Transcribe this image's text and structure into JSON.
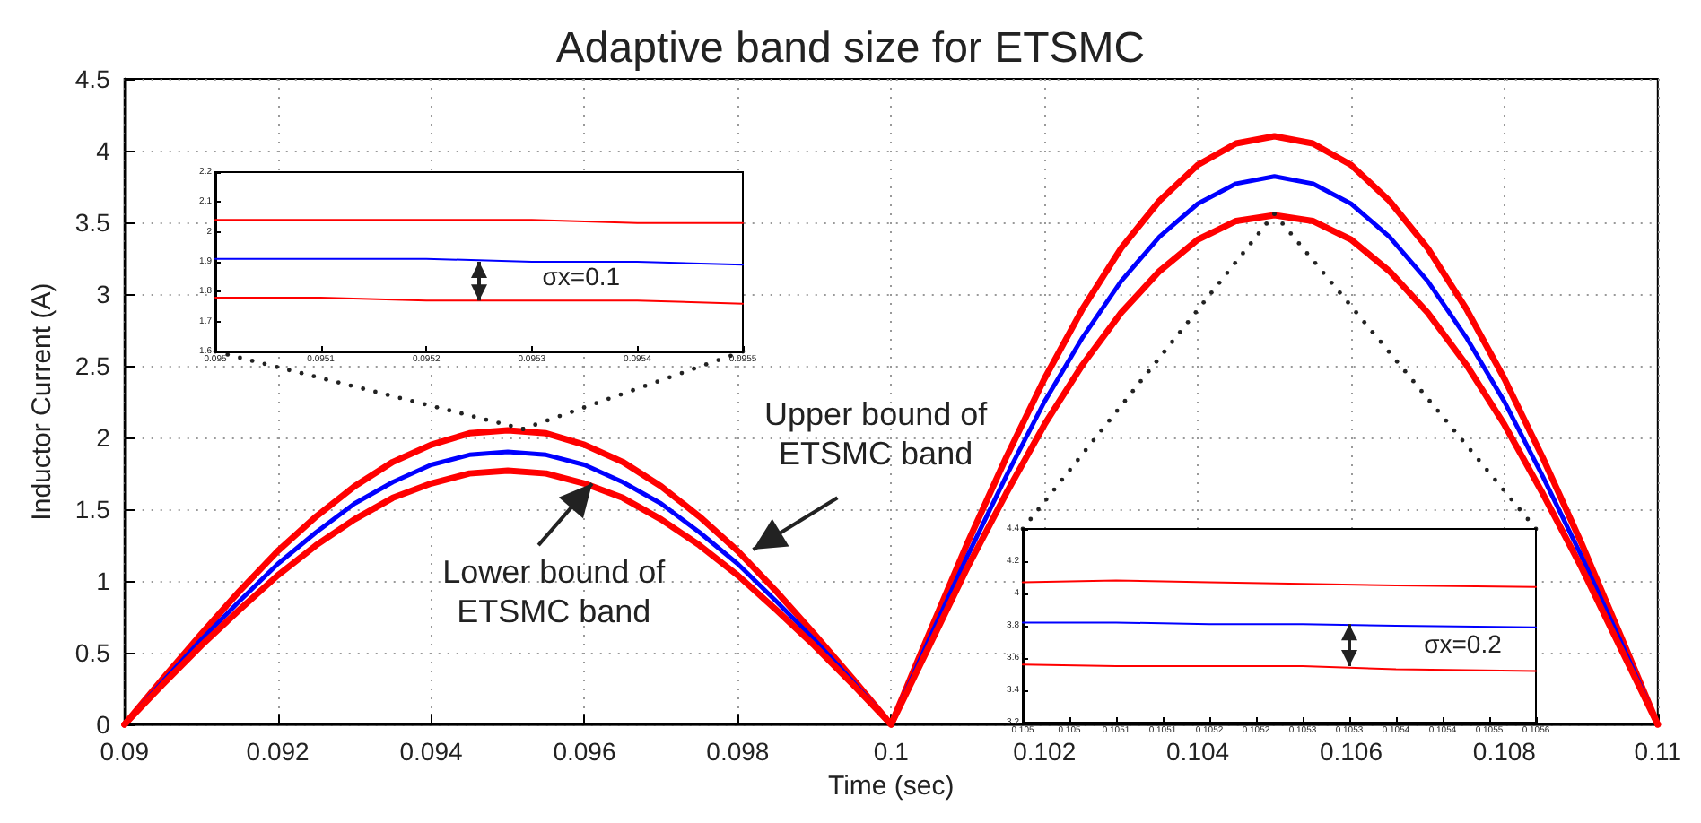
{
  "chart_data": [
    {
      "type": "line",
      "title": "Adaptive band size for ETSMC",
      "xlabel": "Time (sec)",
      "ylabel": "Inductor Current (A)",
      "xlim": [
        0.09,
        0.11
      ],
      "xticks": [
        0.09,
        0.092,
        0.094,
        0.096,
        0.098,
        0.1,
        0.102,
        0.104,
        0.106,
        0.108,
        0.11
      ],
      "ylim": [
        0,
        4.5
      ],
      "yticks": [
        0,
        0.5,
        1,
        1.5,
        2,
        2.5,
        3,
        3.5,
        4,
        4.5
      ],
      "grid": true,
      "x": [
        0.09,
        0.0905,
        0.091,
        0.0915,
        0.092,
        0.0925,
        0.093,
        0.0935,
        0.094,
        0.0945,
        0.095,
        0.0955,
        0.096,
        0.0965,
        0.097,
        0.0975,
        0.098,
        0.0985,
        0.099,
        0.0995,
        0.1,
        0.1005,
        0.101,
        0.1015,
        0.102,
        0.1025,
        0.103,
        0.1035,
        0.104,
        0.1045,
        0.105,
        0.1055,
        0.106,
        0.1065,
        0.107,
        0.1075,
        0.108,
        0.1085,
        0.109,
        0.1095,
        0.11
      ],
      "series": [
        {
          "color": "#ff0000",
          "values": [
            0,
            0.32,
            0.63,
            0.93,
            1.21,
            1.45,
            1.66,
            1.83,
            1.95,
            2.03,
            2.05,
            2.03,
            1.95,
            1.83,
            1.66,
            1.45,
            1.21,
            0.93,
            0.63,
            0.32,
            0,
            0.64,
            1.27,
            1.86,
            2.41,
            2.9,
            3.32,
            3.65,
            3.9,
            4.05,
            4.1,
            4.05,
            3.9,
            3.65,
            3.32,
            2.9,
            2.41,
            1.86,
            1.27,
            0.64,
            0
          ]
        },
        {
          "color": "#0000ff",
          "values": [
            0,
            0.3,
            0.59,
            0.86,
            1.12,
            1.34,
            1.54,
            1.69,
            1.81,
            1.88,
            1.9,
            1.88,
            1.81,
            1.69,
            1.54,
            1.34,
            1.12,
            0.86,
            0.59,
            0.3,
            0,
            0.6,
            1.18,
            1.73,
            2.25,
            2.7,
            3.09,
            3.4,
            3.63,
            3.77,
            3.82,
            3.77,
            3.63,
            3.4,
            3.09,
            2.7,
            2.25,
            1.73,
            1.18,
            0.6,
            0
          ]
        },
        {
          "color": "#ff0000",
          "values": [
            0,
            0.28,
            0.55,
            0.8,
            1.04,
            1.25,
            1.43,
            1.58,
            1.68,
            1.75,
            1.77,
            1.75,
            1.68,
            1.58,
            1.43,
            1.25,
            1.04,
            0.8,
            0.55,
            0.28,
            0,
            0.55,
            1.1,
            1.61,
            2.09,
            2.51,
            2.87,
            3.16,
            3.38,
            3.51,
            3.55,
            3.51,
            3.38,
            3.16,
            2.87,
            2.51,
            2.09,
            1.61,
            1.1,
            0.55,
            0
          ]
        }
      ],
      "annotations": [
        "Upper bound of ETSMC band",
        "Lower bound of ETSMC band"
      ]
    },
    {
      "type": "line",
      "xlim": [
        0.095,
        0.0955
      ],
      "xticks": [
        0.095,
        0.0951,
        0.0952,
        0.0953,
        0.0954,
        0.0955
      ],
      "ylim": [
        1.6,
        2.2
      ],
      "yticks": [
        1.6,
        1.7,
        1.8,
        1.9,
        2,
        2.1,
        2.2
      ],
      "x": [
        0.095,
        0.0951,
        0.0952,
        0.0953,
        0.0954,
        0.0955
      ],
      "series": [
        {
          "color": "#ff0000",
          "values": [
            2.04,
            2.04,
            2.04,
            2.04,
            2.03,
            2.03
          ]
        },
        {
          "color": "#0000ff",
          "values": [
            1.91,
            1.91,
            1.91,
            1.9,
            1.9,
            1.89
          ]
        },
        {
          "color": "#ff0000",
          "values": [
            1.78,
            1.78,
            1.77,
            1.77,
            1.77,
            1.76
          ]
        }
      ],
      "annotations": [
        "σx=0.1"
      ]
    },
    {
      "type": "line",
      "xlim": [
        0.105,
        0.10555
      ],
      "xticks": [
        {
          "value": 0.105,
          "label": "0.105"
        },
        {
          "value": 0.10505,
          "label": "0.105"
        },
        {
          "value": 0.1051,
          "label": "0.1051"
        },
        {
          "value": 0.10515,
          "label": "0.1051"
        },
        {
          "value": 0.1052,
          "label": "0.1052"
        },
        {
          "value": 0.10525,
          "label": "0.1052"
        },
        {
          "value": 0.1053,
          "label": "0.1053"
        },
        {
          "value": 0.10535,
          "label": "0.1053"
        },
        {
          "value": 0.1054,
          "label": "0.1054"
        },
        {
          "value": 0.10545,
          "label": "0.1054"
        },
        {
          "value": 0.1055,
          "label": "0.1055"
        },
        {
          "value": 0.10555,
          "label": "0.1056"
        }
      ],
      "ylim": [
        3.2,
        4.4
      ],
      "yticks": [
        3.2,
        3.4,
        3.6,
        3.8,
        4,
        4.2,
        4.4
      ],
      "x": [
        0.105,
        0.1051,
        0.1052,
        0.1053,
        0.1054,
        0.10555
      ],
      "series": [
        {
          "color": "#ff0000",
          "values": [
            4.07,
            4.08,
            4.07,
            4.06,
            4.05,
            4.04
          ]
        },
        {
          "color": "#0000ff",
          "values": [
            3.82,
            3.82,
            3.81,
            3.81,
            3.8,
            3.79
          ]
        },
        {
          "color": "#ff0000",
          "values": [
            3.56,
            3.55,
            3.55,
            3.55,
            3.53,
            3.52
          ]
        }
      ],
      "annotations": [
        "σx=0.2"
      ]
    }
  ]
}
